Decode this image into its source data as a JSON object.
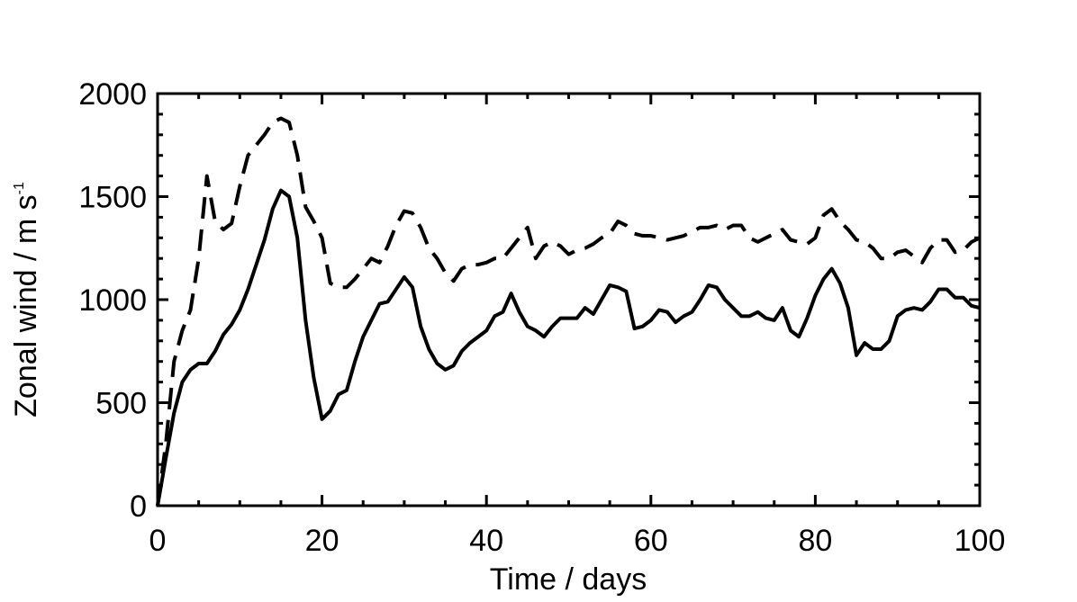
{
  "chart_data": {
    "type": "line",
    "xlabel": "Time / days",
    "ylabel": "Zonal wind / m s",
    "ylabel_superscript": "-1",
    "x": [
      0,
      1,
      2,
      3,
      4,
      5,
      6,
      7,
      8,
      9,
      10,
      11,
      12,
      13,
      14,
      15,
      16,
      17,
      18,
      19,
      20,
      21,
      22,
      23,
      24,
      25,
      26,
      27,
      28,
      29,
      30,
      31,
      32,
      33,
      34,
      35,
      36,
      37,
      38,
      39,
      40,
      41,
      42,
      43,
      44,
      45,
      46,
      47,
      48,
      49,
      50,
      51,
      52,
      53,
      54,
      55,
      56,
      57,
      58,
      59,
      60,
      61,
      62,
      63,
      64,
      65,
      66,
      67,
      68,
      69,
      70,
      71,
      72,
      73,
      74,
      75,
      76,
      77,
      78,
      79,
      80,
      81,
      82,
      83,
      84,
      85,
      86,
      87,
      88,
      89,
      90,
      91,
      92,
      93,
      94,
      95,
      96,
      97,
      98,
      99,
      100
    ],
    "series": [
      {
        "color": "#000000",
        "dash": "solid",
        "values": [
          0,
          230,
          450,
          600,
          660,
          690,
          690,
          750,
          830,
          880,
          950,
          1050,
          1170,
          1290,
          1440,
          1530,
          1500,
          1300,
          900,
          620,
          420,
          460,
          540,
          560,
          700,
          820,
          900,
          980,
          990,
          1050,
          1110,
          1060,
          870,
          760,
          690,
          660,
          680,
          750,
          790,
          820,
          850,
          920,
          940,
          1030,
          940,
          870,
          850,
          820,
          870,
          910,
          910,
          910,
          960,
          930,
          1000,
          1070,
          1060,
          1040,
          860,
          870,
          900,
          950,
          940,
          890,
          920,
          940,
          1000,
          1070,
          1060,
          1000,
          960,
          920,
          920,
          940,
          910,
          900,
          960,
          850,
          820,
          910,
          1020,
          1100,
          1150,
          1080,
          960,
          730,
          790,
          760,
          760,
          800,
          920,
          950,
          960,
          950,
          990,
          1050,
          1050,
          1010,
          1010,
          970,
          960
        ]
      },
      {
        "color": "#000000",
        "dash": "dashed",
        "values": [
          0,
          300,
          700,
          850,
          950,
          1200,
          1600,
          1380,
          1340,
          1370,
          1550,
          1700,
          1750,
          1800,
          1860,
          1880,
          1860,
          1700,
          1450,
          1380,
          1300,
          1080,
          1060,
          1060,
          1100,
          1150,
          1200,
          1180,
          1260,
          1360,
          1430,
          1420,
          1350,
          1250,
          1200,
          1130,
          1090,
          1150,
          1170,
          1170,
          1180,
          1200,
          1200,
          1250,
          1300,
          1350,
          1200,
          1260,
          1280,
          1260,
          1220,
          1240,
          1250,
          1270,
          1300,
          1320,
          1380,
          1360,
          1320,
          1310,
          1310,
          1300,
          1290,
          1300,
          1310,
          1330,
          1350,
          1350,
          1360,
          1340,
          1360,
          1360,
          1300,
          1280,
          1300,
          1320,
          1340,
          1290,
          1280,
          1270,
          1300,
          1410,
          1440,
          1380,
          1340,
          1290,
          1280,
          1250,
          1200,
          1200,
          1230,
          1240,
          1210,
          1180,
          1250,
          1290,
          1290,
          1230,
          1240,
          1280,
          1300
        ]
      }
    ],
    "xlim": [
      0,
      100
    ],
    "xticks": [
      0,
      20,
      40,
      60,
      80,
      100
    ],
    "xminorticks": [
      5,
      10,
      15,
      25,
      30,
      35,
      45,
      50,
      55,
      65,
      70,
      75,
      85,
      90,
      95
    ],
    "ylim": [
      0,
      2000
    ],
    "yticks": [
      0,
      500,
      1000,
      1500,
      2000
    ],
    "yminorticks": [
      100,
      200,
      300,
      400,
      600,
      700,
      800,
      900,
      1100,
      1200,
      1300,
      1400,
      1600,
      1700,
      1800,
      1900
    ],
    "grid": false
  }
}
